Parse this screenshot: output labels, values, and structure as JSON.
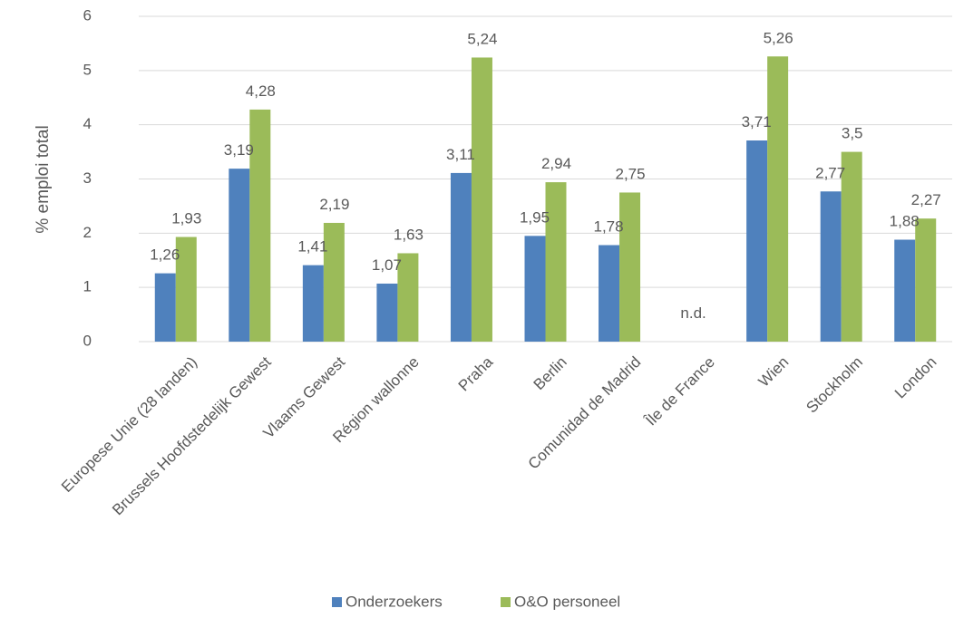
{
  "chart_data": {
    "type": "bar",
    "ylabel": "% emploi total",
    "xlabel": "",
    "ylim": [
      0,
      6
    ],
    "yticks": [
      0,
      1,
      2,
      3,
      4,
      5,
      6
    ],
    "grid": true,
    "legend_position": "bottom",
    "categories": [
      "Europese Unie (28 landen)",
      "Brussels Hoofdstedelijk Gewest",
      "Vlaams Gewest",
      "Région wallonne",
      "Praha",
      "Berlin",
      "Comunidad de Madrid",
      "Île de France",
      "Wien",
      "Stockholm",
      "London"
    ],
    "series": [
      {
        "name": "Onderzoekers",
        "color": "#4f81bd",
        "values": [
          1.26,
          3.19,
          1.41,
          1.07,
          3.11,
          1.95,
          1.78,
          null,
          3.71,
          2.77,
          1.88
        ],
        "labels": [
          "1,26",
          "3,19",
          "1,41",
          "1,07",
          "3,11",
          "1,95",
          "1,78",
          "",
          "3,71",
          "2,77",
          "1,88"
        ]
      },
      {
        "name": "O&O personeel",
        "color": "#9bbb59",
        "values": [
          1.93,
          4.28,
          2.19,
          1.63,
          5.24,
          2.94,
          2.75,
          null,
          5.26,
          3.5,
          2.27
        ],
        "labels": [
          "1,93",
          "4,28",
          "2,19",
          "1,63",
          "5,24",
          "2,94",
          "2,75",
          "",
          "5,26",
          "3,5",
          "2,27"
        ]
      }
    ],
    "annotations": [
      {
        "category_index": 7,
        "text": "n.d."
      }
    ]
  }
}
